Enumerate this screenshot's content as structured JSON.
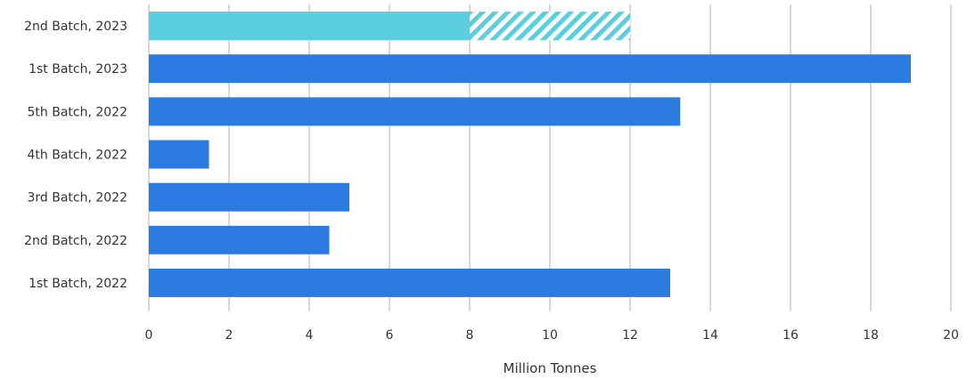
{
  "chart_data": {
    "type": "bar",
    "orientation": "horizontal",
    "categories": [
      "2nd Batch, 2023",
      "1st Batch, 2023",
      "5th Batch, 2022",
      "4th Batch, 2022",
      "3rd Batch, 2022",
      "2nd Batch, 2022",
      "1st Batch, 2022"
    ],
    "series": [
      {
        "values": [
          8,
          19,
          13.25,
          1.5,
          5,
          4.5,
          13
        ],
        "colors": [
          "#5bcfdf",
          "#2c7be0",
          "#2c7be0",
          "#2c7be0",
          "#2c7be0",
          "#2c7be0",
          "#2c7be0"
        ]
      },
      {
        "values": [
          4,
          0,
          0,
          0,
          0,
          0,
          0
        ],
        "color": "#5bcfdf",
        "pattern": "hatched"
      }
    ],
    "stacked": true,
    "xlabel": "Million Tonnes",
    "ylabel": "",
    "xlim": [
      0,
      20
    ],
    "xticks": [
      "0",
      "2",
      "4",
      "6",
      "8",
      "10",
      "12",
      "14",
      "16",
      "18",
      "20"
    ],
    "grid": "vertical",
    "legend": "none"
  }
}
